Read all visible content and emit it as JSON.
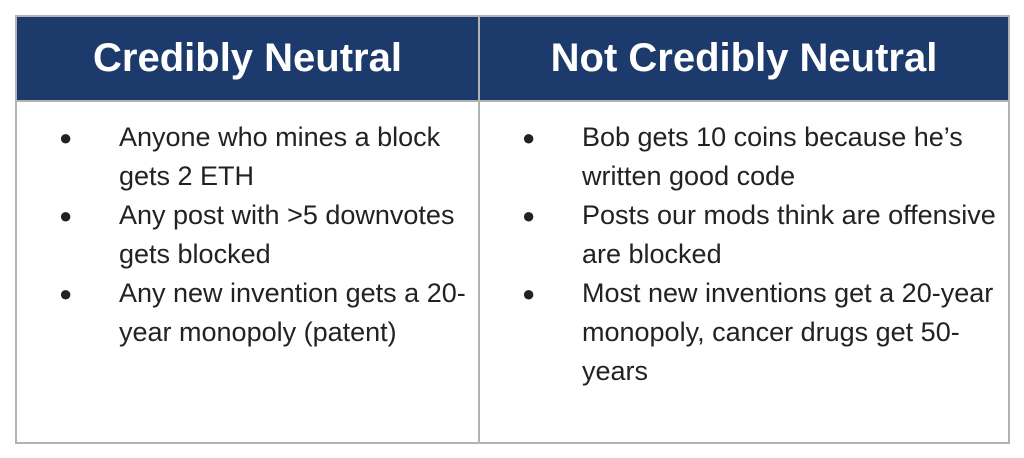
{
  "table": {
    "left": {
      "header": "Credibly Neutral",
      "items": [
        "Anyone who mines a block gets 2 ETH",
        "Any post with >5 downvotes gets blocked",
        "Any new invention gets a 20-year monopoly (patent)"
      ]
    },
    "right": {
      "header": "Not Credibly Neutral",
      "items": [
        "Bob gets 10 coins because he’s written good code",
        "Posts our mods think are offensive are blocked",
        "Most new inventions get a 20-year monopoly, cancer drugs get 50-years"
      ]
    },
    "bullet": "●",
    "colors": {
      "header_bg": "#1c3a6b",
      "header_text": "#ffffff",
      "border": "#b3b3b3",
      "body_text": "#222222"
    }
  }
}
